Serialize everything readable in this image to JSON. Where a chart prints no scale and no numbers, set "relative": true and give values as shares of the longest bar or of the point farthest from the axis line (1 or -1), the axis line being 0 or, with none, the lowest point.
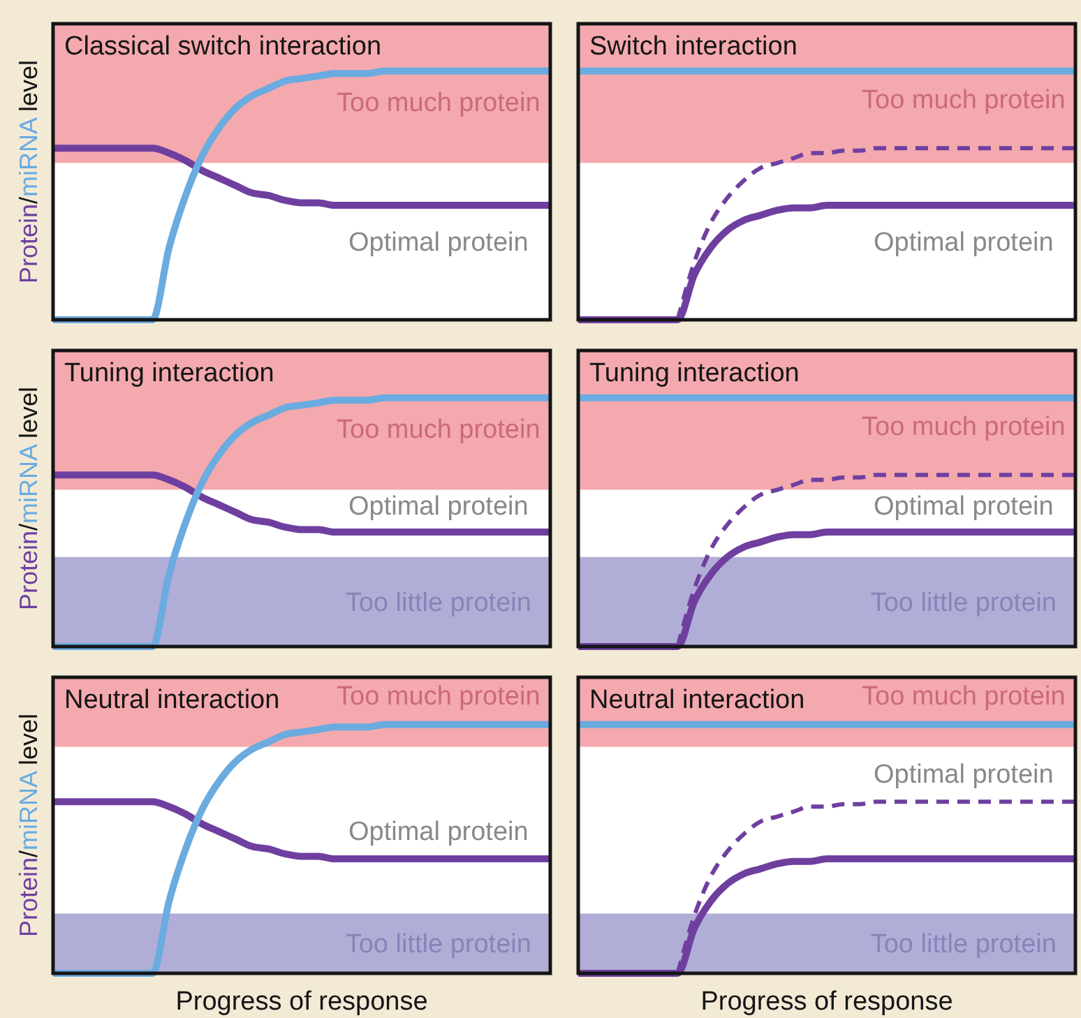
{
  "chart_data": [
    {
      "type": "line",
      "title": "Classical switch interaction",
      "ylabel": "Protein/miRNA level",
      "relative": true,
      "categories": [
        null,
        null,
        null,
        null,
        null,
        null,
        null,
        null,
        null,
        null,
        null,
        null,
        null,
        null,
        null,
        null,
        null,
        null,
        null,
        null,
        null,
        null,
        null,
        null,
        null,
        null,
        null,
        null,
        null,
        null,
        null
      ],
      "series": [
        {
          "color": "#6f3fa0",
          "values": [
            0.69,
            0.69,
            0.69,
            0.69,
            0.69,
            0.69,
            0.69,
            0.67,
            0.64,
            0.6,
            0.57,
            0.54,
            0.51,
            0.5,
            0.48,
            0.47,
            0.47,
            0.46,
            0.46,
            0.46,
            0.46,
            0.46,
            0.46,
            0.46,
            0.46,
            0.46,
            0.46,
            0.46,
            0.46,
            0.46,
            0.46
          ]
        },
        {
          "color": "#6aabe0",
          "values": [
            0,
            0,
            0,
            0,
            0,
            0,
            0,
            0.29,
            0.5,
            0.66,
            0.77,
            0.85,
            0.9,
            0.93,
            0.96,
            0.97,
            0.98,
            0.99,
            0.99,
            0.99,
            1,
            1,
            1,
            1,
            1,
            1,
            1,
            1,
            1,
            1,
            1
          ]
        }
      ],
      "bands": [
        {
          "axis": "y",
          "from": 0.63,
          "to": 1.19,
          "label": "Too much protein",
          "color": "#f4a9ae"
        },
        {
          "axis": "y",
          "from": 0,
          "to": 0.63,
          "label": "Optimal protein",
          "color": "#ffffff"
        }
      ]
    },
    {
      "type": "line",
      "title": "Switch interaction",
      "relative": true,
      "categories": [
        null,
        null,
        null,
        null,
        null,
        null,
        null,
        null,
        null,
        null,
        null,
        null,
        null,
        null,
        null,
        null,
        null,
        null,
        null,
        null,
        null,
        null,
        null,
        null,
        null,
        null,
        null,
        null,
        null,
        null,
        null
      ],
      "series": [
        {
          "color": "#6f3fa0",
          "line_style": "dashed",
          "values": [
            null,
            null,
            null,
            null,
            null,
            null,
            0,
            0.23,
            0.39,
            0.49,
            0.56,
            0.61,
            0.63,
            0.65,
            0.67,
            0.67,
            0.68,
            0.68,
            0.69,
            0.69,
            0.69,
            0.69,
            0.69,
            0.69,
            0.69,
            0.69,
            0.69,
            0.69,
            0.69,
            0.69,
            0.69
          ]
        },
        {
          "color": "#6f3fa0",
          "values": [
            0,
            0,
            0,
            0,
            0,
            0,
            0,
            0.18,
            0.29,
            0.36,
            0.4,
            0.42,
            0.44,
            0.45,
            0.45,
            0.46,
            0.46,
            0.46,
            0.46,
            0.46,
            0.46,
            0.46,
            0.46,
            0.46,
            0.46,
            0.46,
            0.46,
            0.46,
            0.46,
            0.46,
            0.46
          ]
        },
        {
          "color": "#6aabe0",
          "values": [
            1,
            1,
            1,
            1,
            1,
            1,
            1,
            1,
            1,
            1,
            1,
            1,
            1,
            1,
            1,
            1,
            1,
            1,
            1,
            1,
            1,
            1,
            1,
            1,
            1,
            1,
            1,
            1,
            1,
            1,
            1
          ]
        }
      ],
      "bands": [
        {
          "axis": "y",
          "from": 0.63,
          "to": 1.19,
          "label": "Too much protein",
          "color": "#f4a9ae"
        },
        {
          "axis": "y",
          "from": 0,
          "to": 0.63,
          "label": "Optimal protein",
          "color": "#ffffff"
        }
      ]
    },
    {
      "type": "line",
      "title": "Tuning interaction",
      "ylabel": "Protein/miRNA level",
      "relative": true,
      "categories": [
        null,
        null,
        null,
        null,
        null,
        null,
        null,
        null,
        null,
        null,
        null,
        null,
        null,
        null,
        null,
        null,
        null,
        null,
        null,
        null,
        null,
        null,
        null,
        null,
        null,
        null,
        null,
        null,
        null,
        null,
        null
      ],
      "series": [
        {
          "color": "#6f3fa0",
          "values": [
            0.69,
            0.69,
            0.69,
            0.69,
            0.69,
            0.69,
            0.69,
            0.67,
            0.64,
            0.6,
            0.57,
            0.54,
            0.51,
            0.5,
            0.48,
            0.47,
            0.47,
            0.46,
            0.46,
            0.46,
            0.46,
            0.46,
            0.46,
            0.46,
            0.46,
            0.46,
            0.46,
            0.46,
            0.46,
            0.46,
            0.46
          ]
        },
        {
          "color": "#6aabe0",
          "values": [
            0,
            0,
            0,
            0,
            0,
            0,
            0,
            0.29,
            0.5,
            0.66,
            0.77,
            0.85,
            0.9,
            0.93,
            0.96,
            0.97,
            0.98,
            0.99,
            0.99,
            0.99,
            1,
            1,
            1,
            1,
            1,
            1,
            1,
            1,
            1,
            1,
            1
          ]
        }
      ],
      "bands": [
        {
          "axis": "y",
          "from": 0.63,
          "to": 1.19,
          "label": "Too much protein",
          "color": "#f4a9ae"
        },
        {
          "axis": "y",
          "from": 0.36,
          "to": 0.63,
          "label": "Optimal protein",
          "color": "#ffffff"
        },
        {
          "axis": "y",
          "from": 0,
          "to": 0.36,
          "label": "Too little protein",
          "color": "#b0aed6"
        }
      ]
    },
    {
      "type": "line",
      "title": "Tuning interaction",
      "relative": true,
      "categories": [
        null,
        null,
        null,
        null,
        null,
        null,
        null,
        null,
        null,
        null,
        null,
        null,
        null,
        null,
        null,
        null,
        null,
        null,
        null,
        null,
        null,
        null,
        null,
        null,
        null,
        null,
        null,
        null,
        null,
        null,
        null
      ],
      "series": [
        {
          "color": "#6f3fa0",
          "line_style": "dashed",
          "values": [
            null,
            null,
            null,
            null,
            null,
            null,
            0,
            0.23,
            0.39,
            0.49,
            0.56,
            0.61,
            0.63,
            0.65,
            0.67,
            0.67,
            0.68,
            0.68,
            0.69,
            0.69,
            0.69,
            0.69,
            0.69,
            0.69,
            0.69,
            0.69,
            0.69,
            0.69,
            0.69,
            0.69,
            0.69
          ]
        },
        {
          "color": "#6f3fa0",
          "values": [
            0,
            0,
            0,
            0,
            0,
            0,
            0,
            0.18,
            0.29,
            0.36,
            0.4,
            0.42,
            0.44,
            0.45,
            0.45,
            0.46,
            0.46,
            0.46,
            0.46,
            0.46,
            0.46,
            0.46,
            0.46,
            0.46,
            0.46,
            0.46,
            0.46,
            0.46,
            0.46,
            0.46,
            0.46
          ]
        },
        {
          "color": "#6aabe0",
          "values": [
            1,
            1,
            1,
            1,
            1,
            1,
            1,
            1,
            1,
            1,
            1,
            1,
            1,
            1,
            1,
            1,
            1,
            1,
            1,
            1,
            1,
            1,
            1,
            1,
            1,
            1,
            1,
            1,
            1,
            1,
            1
          ]
        }
      ],
      "bands": [
        {
          "axis": "y",
          "from": 0.63,
          "to": 1.19,
          "label": "Too much protein",
          "color": "#f4a9ae"
        },
        {
          "axis": "y",
          "from": 0.36,
          "to": 0.63,
          "label": "Optimal protein",
          "color": "#ffffff"
        },
        {
          "axis": "y",
          "from": 0,
          "to": 0.36,
          "label": "Too little protein",
          "color": "#b0aed6"
        }
      ]
    },
    {
      "type": "line",
      "title": "Neutral interaction",
      "ylabel": "Protein/miRNA level",
      "xlabel": "Progress of response",
      "relative": true,
      "categories": [
        null,
        null,
        null,
        null,
        null,
        null,
        null,
        null,
        null,
        null,
        null,
        null,
        null,
        null,
        null,
        null,
        null,
        null,
        null,
        null,
        null,
        null,
        null,
        null,
        null,
        null,
        null,
        null,
        null,
        null,
        null
      ],
      "series": [
        {
          "color": "#6f3fa0",
          "values": [
            0.69,
            0.69,
            0.69,
            0.69,
            0.69,
            0.69,
            0.69,
            0.67,
            0.64,
            0.6,
            0.57,
            0.54,
            0.51,
            0.5,
            0.48,
            0.47,
            0.47,
            0.46,
            0.46,
            0.46,
            0.46,
            0.46,
            0.46,
            0.46,
            0.46,
            0.46,
            0.46,
            0.46,
            0.46,
            0.46,
            0.46
          ]
        },
        {
          "color": "#6aabe0",
          "values": [
            0,
            0,
            0,
            0,
            0,
            0,
            0,
            0.29,
            0.5,
            0.66,
            0.77,
            0.85,
            0.9,
            0.93,
            0.96,
            0.97,
            0.98,
            0.99,
            0.99,
            0.99,
            1,
            1,
            1,
            1,
            1,
            1,
            1,
            1,
            1,
            1,
            1
          ]
        }
      ],
      "bands": [
        {
          "axis": "y",
          "from": 0.91,
          "to": 1.19,
          "label": "Too much protein",
          "color": "#f4a9ae"
        },
        {
          "axis": "y",
          "from": 0.24,
          "to": 0.91,
          "label": "Optimal protein",
          "color": "#ffffff"
        },
        {
          "axis": "y",
          "from": 0,
          "to": 0.24,
          "label": "Too little protein",
          "color": "#b0aed6"
        }
      ]
    },
    {
      "type": "line",
      "title": "Neutral interaction",
      "xlabel": "Progress of response",
      "relative": true,
      "categories": [
        null,
        null,
        null,
        null,
        null,
        null,
        null,
        null,
        null,
        null,
        null,
        null,
        null,
        null,
        null,
        null,
        null,
        null,
        null,
        null,
        null,
        null,
        null,
        null,
        null,
        null,
        null,
        null,
        null,
        null,
        null
      ],
      "series": [
        {
          "color": "#6f3fa0",
          "line_style": "dashed",
          "values": [
            null,
            null,
            null,
            null,
            null,
            null,
            0,
            0.23,
            0.39,
            0.49,
            0.56,
            0.61,
            0.63,
            0.65,
            0.67,
            0.67,
            0.68,
            0.68,
            0.69,
            0.69,
            0.69,
            0.69,
            0.69,
            0.69,
            0.69,
            0.69,
            0.69,
            0.69,
            0.69,
            0.69,
            0.69
          ]
        },
        {
          "color": "#6f3fa0",
          "values": [
            0,
            0,
            0,
            0,
            0,
            0,
            0,
            0.18,
            0.29,
            0.36,
            0.4,
            0.42,
            0.44,
            0.45,
            0.45,
            0.46,
            0.46,
            0.46,
            0.46,
            0.46,
            0.46,
            0.46,
            0.46,
            0.46,
            0.46,
            0.46,
            0.46,
            0.46,
            0.46,
            0.46,
            0.46
          ]
        },
        {
          "color": "#6aabe0",
          "values": [
            1,
            1,
            1,
            1,
            1,
            1,
            1,
            1,
            1,
            1,
            1,
            1,
            1,
            1,
            1,
            1,
            1,
            1,
            1,
            1,
            1,
            1,
            1,
            1,
            1,
            1,
            1,
            1,
            1,
            1,
            1
          ]
        }
      ],
      "bands": [
        {
          "axis": "y",
          "from": 0.91,
          "to": 1.19,
          "label": "Too much protein",
          "color": "#f4a9ae"
        },
        {
          "axis": "y",
          "from": 0.24,
          "to": 0.91,
          "label": "Optimal protein",
          "color": "#ffffff"
        },
        {
          "axis": "y",
          "from": 0,
          "to": 0.24,
          "label": "Too little protein",
          "color": "#b0aed6"
        }
      ]
    }
  ]
}
